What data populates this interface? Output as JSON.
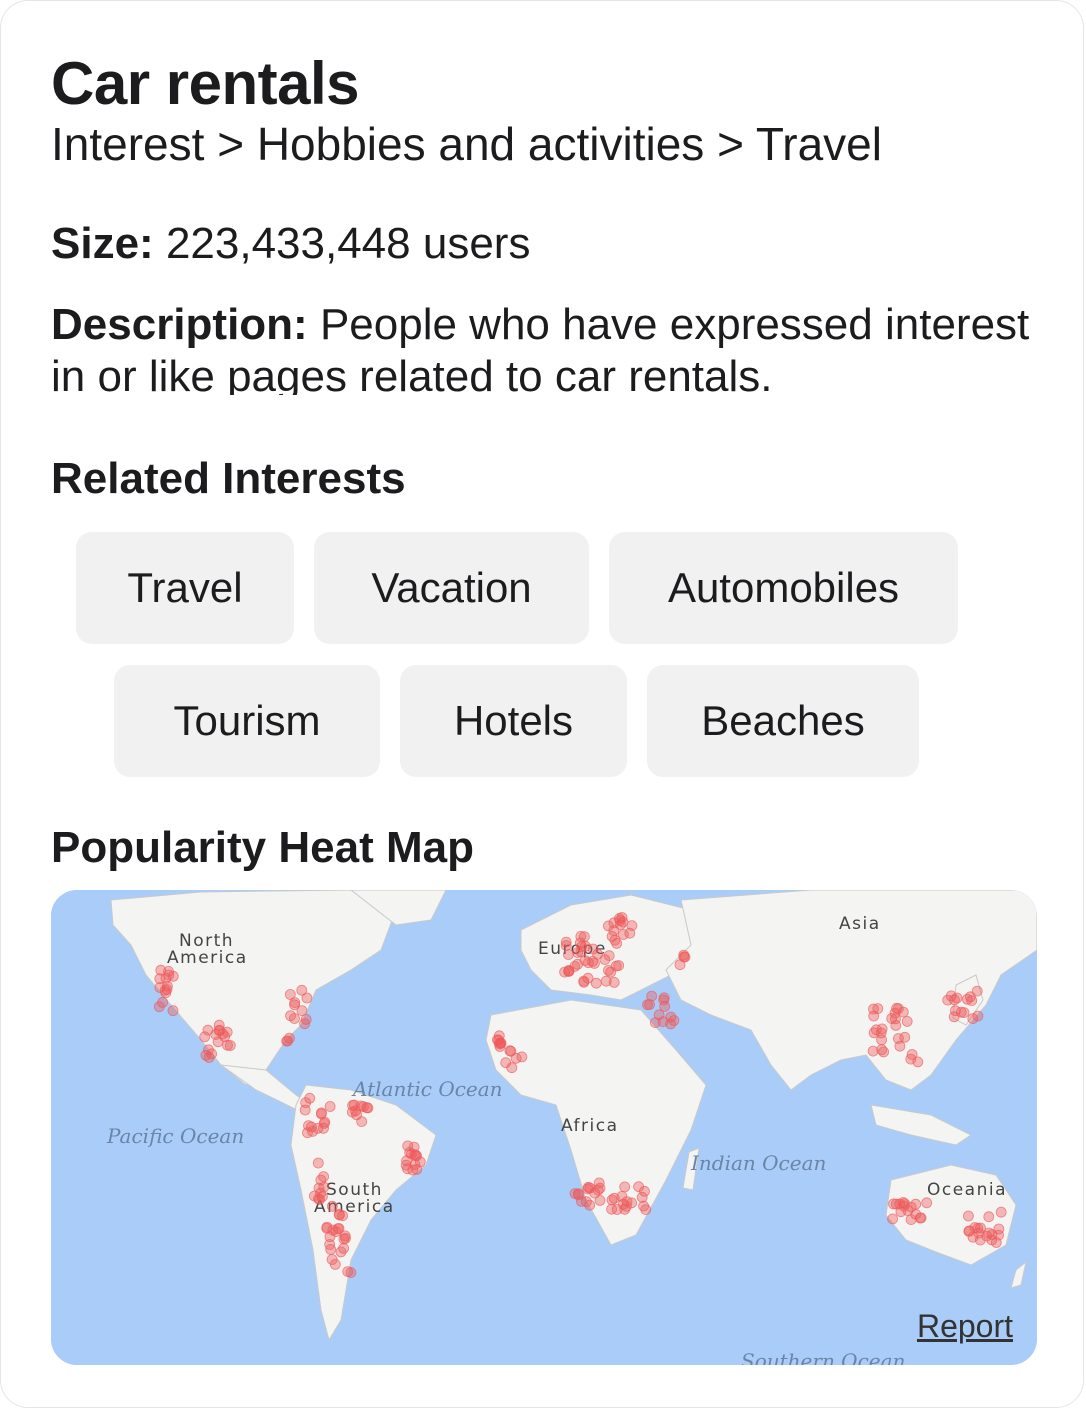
{
  "header": {
    "title": "Car rentals",
    "breadcrumb": "Interest > Hobbies and activities > Travel"
  },
  "size": {
    "label": "Size:",
    "value": "223,433,448 users"
  },
  "description": {
    "label": "Description:",
    "value": "People who have expressed interest in or like pages related to car rentals."
  },
  "related": {
    "heading": "Related Interests",
    "items": [
      "Travel",
      "Vacation",
      "Automobiles",
      "Tourism",
      "Hotels",
      "Beaches"
    ]
  },
  "heatmap": {
    "heading": "Popularity Heat Map",
    "report_label": "Report",
    "continents": {
      "north_america_1": "North",
      "north_america_2": "America",
      "europe": "Europe",
      "asia": "Asia",
      "africa": "Africa",
      "south_america_1": "South",
      "south_america_2": "America",
      "oceania": "Oceania"
    },
    "oceans": {
      "atlantic": "Atlantic Ocean",
      "pacific": "Pacific Ocean",
      "indian": "Indian Ocean",
      "southern": "Southern Ocean"
    },
    "colors": {
      "water": "#a9cdf8",
      "land": "#f4f4f2",
      "heat": "#ee5a5a"
    }
  }
}
